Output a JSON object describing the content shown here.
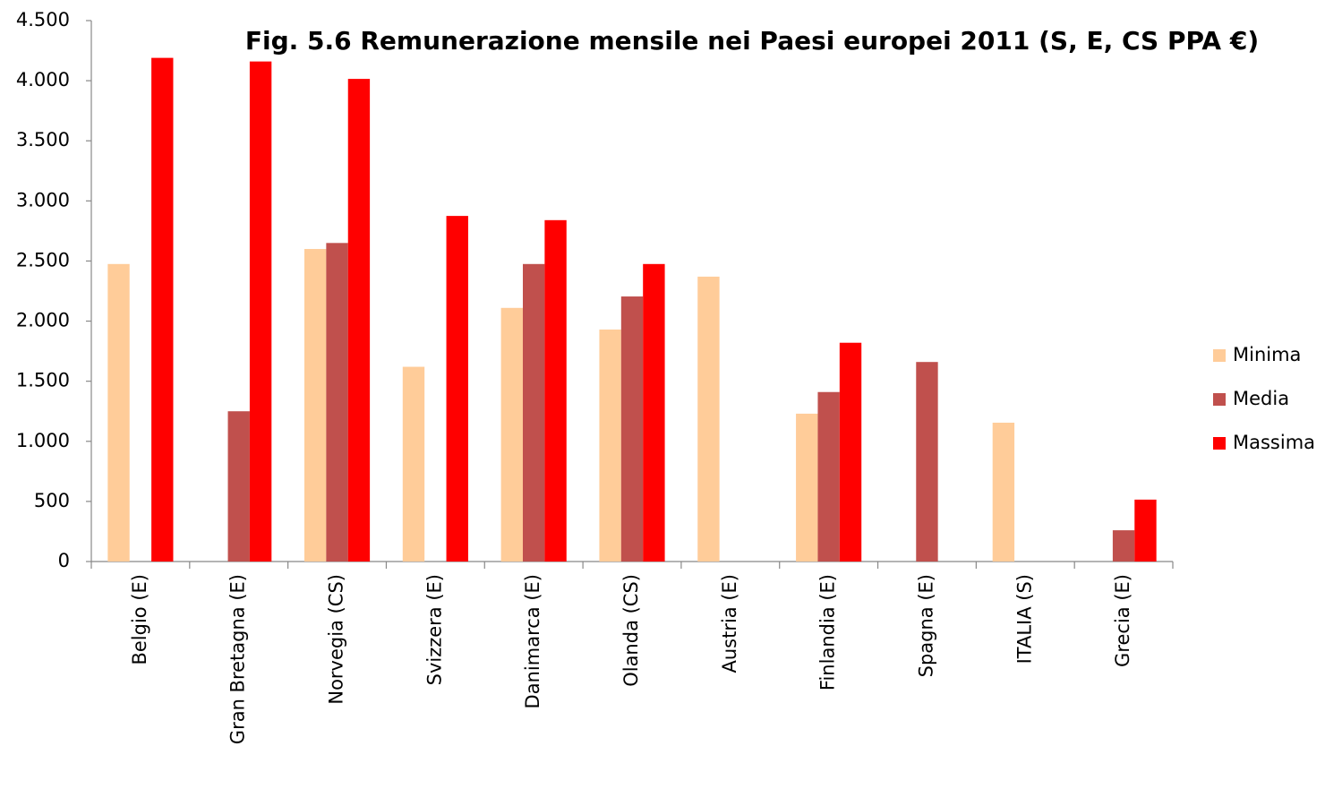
{
  "chart_data": {
    "type": "bar",
    "title": "Fig. 5.6 Remunerazione mensile nei Paesi europei 2011 (S, E, CS PPA €)",
    "categories": [
      "Belgio (E)",
      "Gran Bretagna (E)",
      "Norvegia (CS)",
      "Svizzera (E)",
      "Danimarca (E)",
      "Olanda (CS)",
      "Austria (E)",
      "Finlandia (E)",
      "Spagna (E)",
      "ITALIA (S)",
      "Grecia (E)"
    ],
    "series": [
      {
        "name": "Minima",
        "color": "#FFCC99",
        "values": [
          2475,
          null,
          2600,
          1620,
          2110,
          1930,
          2370,
          1230,
          null,
          1155,
          null
        ]
      },
      {
        "name": "Media",
        "color": "#C0504D",
        "values": [
          null,
          1250,
          2650,
          null,
          2475,
          2205,
          null,
          1410,
          1660,
          null,
          260
        ]
      },
      {
        "name": "Massima",
        "color": "#FF0000",
        "values": [
          4190,
          4160,
          4015,
          2875,
          2840,
          2475,
          null,
          1820,
          null,
          null,
          515
        ]
      }
    ],
    "ylim": [
      0,
      4500
    ],
    "yticks": [
      0,
      500,
      {
        "value": 1000,
        "label": "1.000"
      },
      {
        "value": 1500,
        "label": "1.500"
      },
      {
        "value": 2000,
        "label": "2.000"
      },
      {
        "value": 2500,
        "label": "2.500"
      },
      {
        "value": 3000,
        "label": "3.000"
      },
      {
        "value": 3500,
        "label": "3.500"
      },
      {
        "value": 4000,
        "label": "4.000"
      },
      {
        "value": 4500,
        "label": "4.500"
      }
    ],
    "legend": "right"
  }
}
